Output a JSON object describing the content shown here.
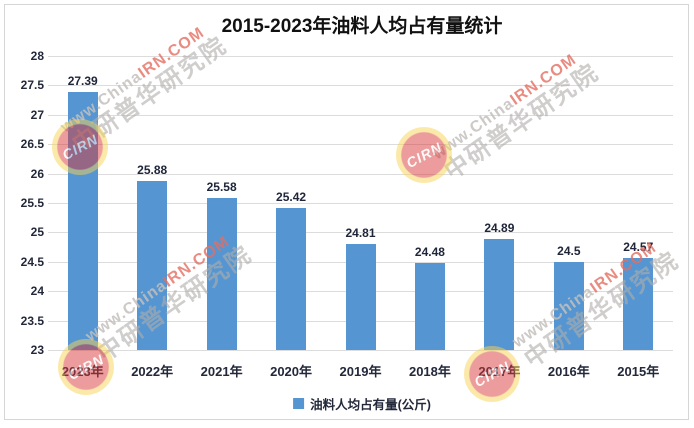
{
  "chart_data": {
    "type": "bar",
    "title": "2015-2023年油料人均占有量统计",
    "legend": "油料人均占有量(公斤)",
    "legend_position": "bottom",
    "categories": [
      "2023年",
      "2022年",
      "2021年",
      "2020年",
      "2019年",
      "2018年",
      "2017年",
      "2016年",
      "2015年"
    ],
    "values": [
      27.39,
      25.88,
      25.58,
      25.42,
      24.81,
      24.48,
      24.89,
      24.5,
      24.57
    ],
    "value_labels": [
      "27.39",
      "25.88",
      "25.58",
      "25.42",
      "24.81",
      "24.48",
      "24.89",
      "24.5",
      "24.57"
    ],
    "ylim": [
      23,
      28
    ],
    "yticks": [
      "28",
      "27.5",
      "27",
      "26.5",
      "26",
      "25.5",
      "25",
      "24.5",
      "24",
      "23.5",
      "23"
    ],
    "grid": true,
    "bar_color": "#5596d2"
  },
  "watermark": {
    "line1_prefix": "www.China",
    "line1_accent": "IRN.COM",
    "line2": "中研普华研究院",
    "logo_text": "CIRN"
  }
}
